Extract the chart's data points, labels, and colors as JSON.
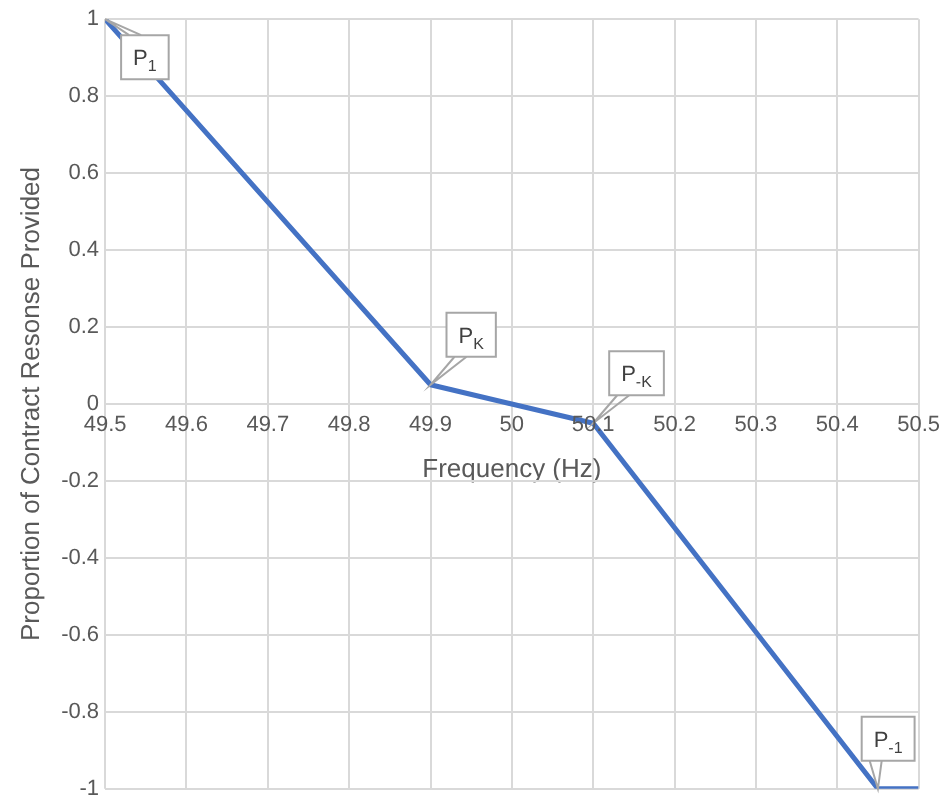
{
  "chart_data": {
    "type": "line",
    "xlabel": "Frequency (Hz)",
    "ylabel": "Proportion of Contract Resonse Provided",
    "x": [
      49.5,
      49.9,
      50.1,
      50.45,
      50.5
    ],
    "series": [
      {
        "color": "#4472c4",
        "values": [
          1,
          0.05,
          -0.05,
          -1,
          -1
        ]
      }
    ],
    "xlim": [
      49.5,
      50.5
    ],
    "xticks": [
      49.5,
      49.6,
      49.7,
      49.8,
      49.9,
      50,
      50.1,
      50.2,
      50.3,
      50.4,
      50.5
    ],
    "ylim": [
      -1,
      1
    ],
    "yticks": [
      -1,
      -0.8,
      -0.6,
      -0.4,
      -0.2,
      0,
      0.2,
      0.4,
      0.6,
      0.8,
      1
    ],
    "grid": true,
    "legend": false,
    "marker": "none",
    "line_style": "solid",
    "annotations": [
      {
        "text": "P$_{1}$",
        "x": 49.5,
        "y": 1
      },
      {
        "text": "P$_{K}$",
        "x": 49.9,
        "y": 0.05
      },
      {
        "text": "P$_{-K}$",
        "x": 50.1,
        "y": -0.05
      },
      {
        "text": "P$_{-1}$",
        "x": 50.45,
        "y": -1
      }
    ]
  }
}
